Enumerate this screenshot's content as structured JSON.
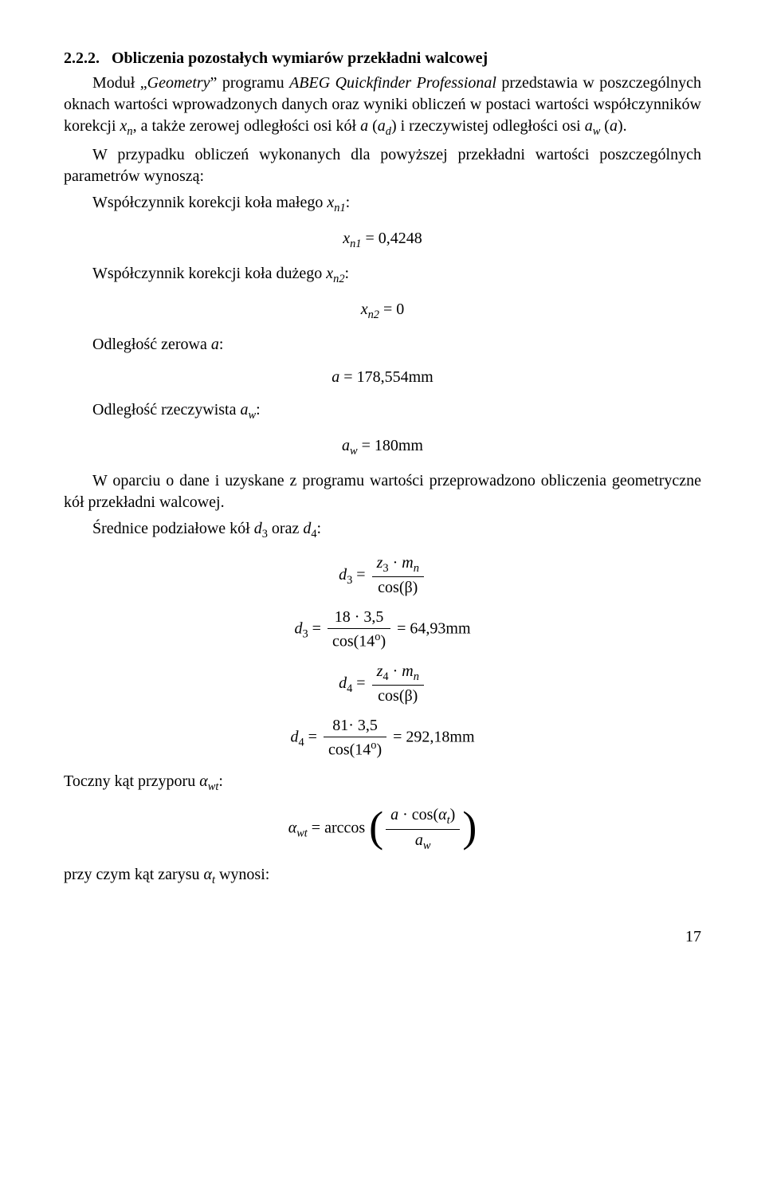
{
  "section": {
    "number": "2.2.2.",
    "title": "Obliczenia pozostałych wymiarów przekładni walcowej"
  },
  "intro": {
    "p1_a": "Moduł „",
    "p1_geometry": "Geometry",
    "p1_b": "” programu ",
    "p1_prog": "ABEG Quickfinder Professional",
    "p1_c": " przedstawia w poszczególnych oknach wartości wprowadzonych danych oraz wyniki obliczeń w postaci wartości współczynników korekcji ",
    "p1_xn": "x",
    "p1_xn_sub": "n",
    "p1_d": ", a także zerowej odległości osi kół ",
    "p1_a_var": "a",
    "p1_e": " (",
    "p1_ad": "a",
    "p1_ad_sub": "d",
    "p1_f": ") i rzeczywistej odległości osi ",
    "p1_aw": "a",
    "p1_aw_sub": "w",
    "p1_g": " (",
    "p1_a2": "a",
    "p1_h": ")."
  },
  "para2": {
    "a": "W przypadku obliczeń wykonanych dla powyższej przekładni wartości poszczególnych parametrów wynoszą:"
  },
  "items": {
    "xn1_label_a": "Współczynnik korekcji koła małego ",
    "xn1_label_var": "x",
    "xn1_label_sub": "n1",
    "xn1_label_b": ":",
    "xn2_label_a": "Współczynnik korekcji koła dużego ",
    "xn2_label_var": "x",
    "xn2_label_sub": "n2",
    "xn2_label_b": ":",
    "azero_label_a": "Odległość zerowa ",
    "azero_label_var": "a",
    "azero_label_b": ":",
    "aw_label_a": "Odległość rzeczywista ",
    "aw_label_var": "a",
    "aw_label_sub": "w",
    "aw_label_b": ":"
  },
  "formulas": {
    "xn1_lhs": "x",
    "xn1_lhs_sub": "n1",
    "xn1_eq": " = 0,4248",
    "xn2_lhs": "x",
    "xn2_lhs_sub": "n2",
    "xn2_eq": " = 0",
    "a_lhs": "a",
    "a_eq": " = 178,554mm",
    "aw_lhs": "a",
    "aw_lhs_sub": "w",
    "aw_eq": " = 180mm"
  },
  "para3": {
    "a": "W oparciu o dane i uzyskane z programu wartości przeprowadzono obliczenia geometryczne kół przekładni walcowej."
  },
  "diam": {
    "label_a": "Średnice podziałowe kół ",
    "d3": "d",
    "d3_sub": "3",
    "mid": " oraz ",
    "d4": "d",
    "d4_sub": "4",
    "label_b": ":"
  },
  "d3_formula": {
    "lhs": "d",
    "lhs_sub": "3",
    "eq": " = ",
    "num_a": "z",
    "num_a_sub": "3",
    "num_dot": " · ",
    "num_b": "m",
    "num_b_sub": "n",
    "den": "cos(β)"
  },
  "d3_val": {
    "lhs": "d",
    "lhs_sub": "3",
    "eq": " = ",
    "num": "18 · 3,5",
    "den_a": "cos(14",
    "den_deg": "o",
    "den_b": ")",
    "rhs": " = 64,93mm"
  },
  "d4_formula": {
    "lhs": "d",
    "lhs_sub": "4",
    "eq": " = ",
    "num_a": "z",
    "num_a_sub": "4",
    "num_dot": " · ",
    "num_b": "m",
    "num_b_sub": "n",
    "den": "cos(β)"
  },
  "d4_val": {
    "lhs": "d",
    "lhs_sub": "4",
    "eq": " = ",
    "num": "81· 3,5",
    "den_a": "cos(14",
    "den_deg": "o",
    "den_b": ")",
    "rhs": " = 292,18mm"
  },
  "alpha": {
    "label_a": "Toczny kąt przyporu ",
    "alpha": "α",
    "alpha_sub": "wt",
    "label_b": ":",
    "lhs": "α",
    "lhs_sub": "wt",
    "eq": " = arccos",
    "num_a": "a",
    "num_dot": " · cos",
    "num_paren_open": "(",
    "num_alpha": "α",
    "num_alpha_sub": "t",
    "num_paren_close": ")",
    "den": "a",
    "den_sub": "w"
  },
  "closing": {
    "a": "przy czym kąt zarysu ",
    "alpha": "α",
    "alpha_sub": "t",
    "b": " wynosi:"
  },
  "page": "17",
  "styling": {
    "font_family": "Times New Roman",
    "font_size_pt": 12,
    "background_color": "#ffffff",
    "text_color": "#000000"
  }
}
